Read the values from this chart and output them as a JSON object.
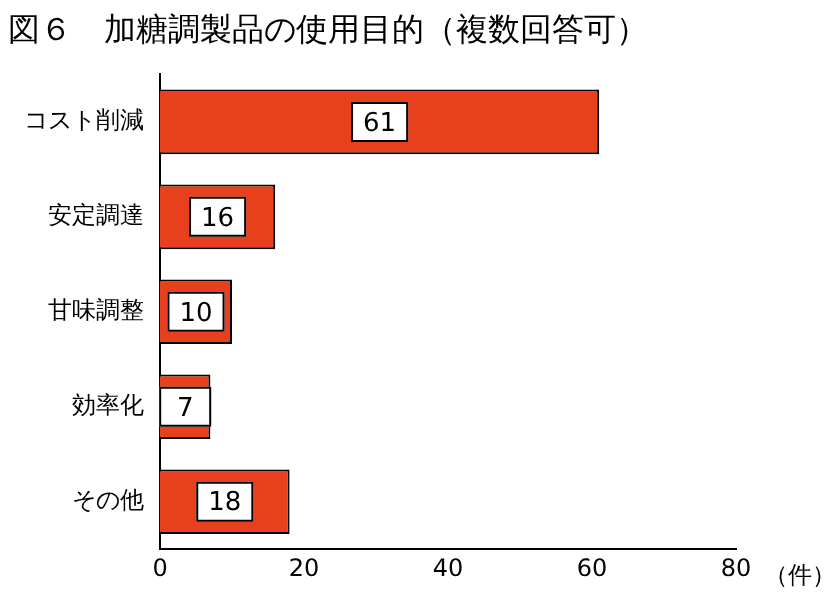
{
  "chart_data": {
    "type": "bar",
    "orientation": "horizontal",
    "title": "図６　加糖調製品の使用目的（複数回答可）",
    "xlabel": "（件）",
    "categories": [
      "コスト削減",
      "安定調達",
      "甘味調整",
      "効率化",
      "その他"
    ],
    "values": [
      61,
      16,
      10,
      7,
      18
    ],
    "color": "#e8401c",
    "xlim": [
      0,
      80
    ],
    "xticks": [
      0,
      20,
      40,
      60,
      80
    ],
    "grid": false,
    "data_labels": true
  }
}
